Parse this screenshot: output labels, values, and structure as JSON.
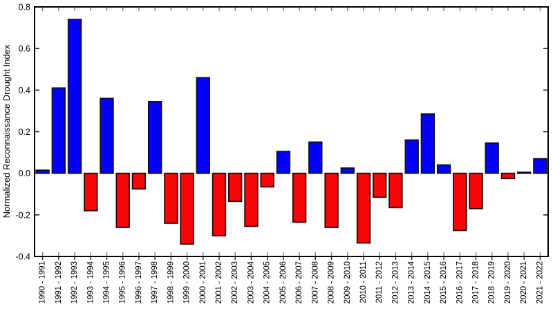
{
  "chart_data": {
    "type": "bar",
    "title": "",
    "xlabel": "",
    "ylabel": "Normalized Reconnaissance Drought Index",
    "ylim": [
      -0.4,
      0.8
    ],
    "grid": "off",
    "legend": "none",
    "yticks": [
      {
        "value": 0.8,
        "label": "0.8"
      },
      {
        "value": 0.6,
        "label": "0.6"
      },
      {
        "value": 0.4,
        "label": "0.4"
      },
      {
        "value": 0.2,
        "label": "0.2"
      },
      {
        "value": 0.0,
        "label": "0.0"
      },
      {
        "value": -0.2,
        "label": "-0.2"
      },
      {
        "value": -0.4,
        "label": "-0.4"
      }
    ],
    "categories": [
      "1990 - 1991",
      "1991 - 1992",
      "1992 - 1993",
      "1993 - 1994",
      "1994 - 1995",
      "1995 - 1996",
      "1996 - 1997",
      "1997 - 1998",
      "1998 - 1999",
      "1999 - 2000",
      "2000 - 2001",
      "2001 - 2002",
      "2002 - 2003",
      "2003 - 2004",
      "2004 - 2005",
      "2005 - 2006",
      "2006 - 2007",
      "2007 - 2008",
      "2008 - 2009",
      "2009 - 2010",
      "2010 - 2011",
      "2011 - 2012",
      "2012 - 2013",
      "2013 - 2014",
      "2014 - 2015",
      "2015 - 2016",
      "2016 - 2017",
      "2017 - 2018",
      "2018 - 2019",
      "2019 - 2020",
      "2020 - 2021",
      "2021 - 2022"
    ],
    "values": [
      0.015,
      0.41,
      0.74,
      -0.18,
      0.36,
      -0.26,
      -0.075,
      0.345,
      -0.24,
      -0.34,
      0.46,
      -0.3,
      -0.135,
      -0.255,
      -0.065,
      0.105,
      -0.235,
      0.15,
      -0.26,
      0.025,
      -0.335,
      -0.115,
      -0.165,
      0.16,
      0.285,
      0.04,
      -0.275,
      -0.17,
      0.145,
      -0.025,
      0.005,
      0.07
    ],
    "colors": {
      "positive_fill": "#0202f8",
      "positive_edge": "#10101e",
      "negative_fill": "#f80606",
      "negative_edge": "#230606",
      "axis_frame": "#000000",
      "inner_tick": "#7a7a7a",
      "outer_tick": "#222222",
      "tick_label": "#000000"
    }
  }
}
